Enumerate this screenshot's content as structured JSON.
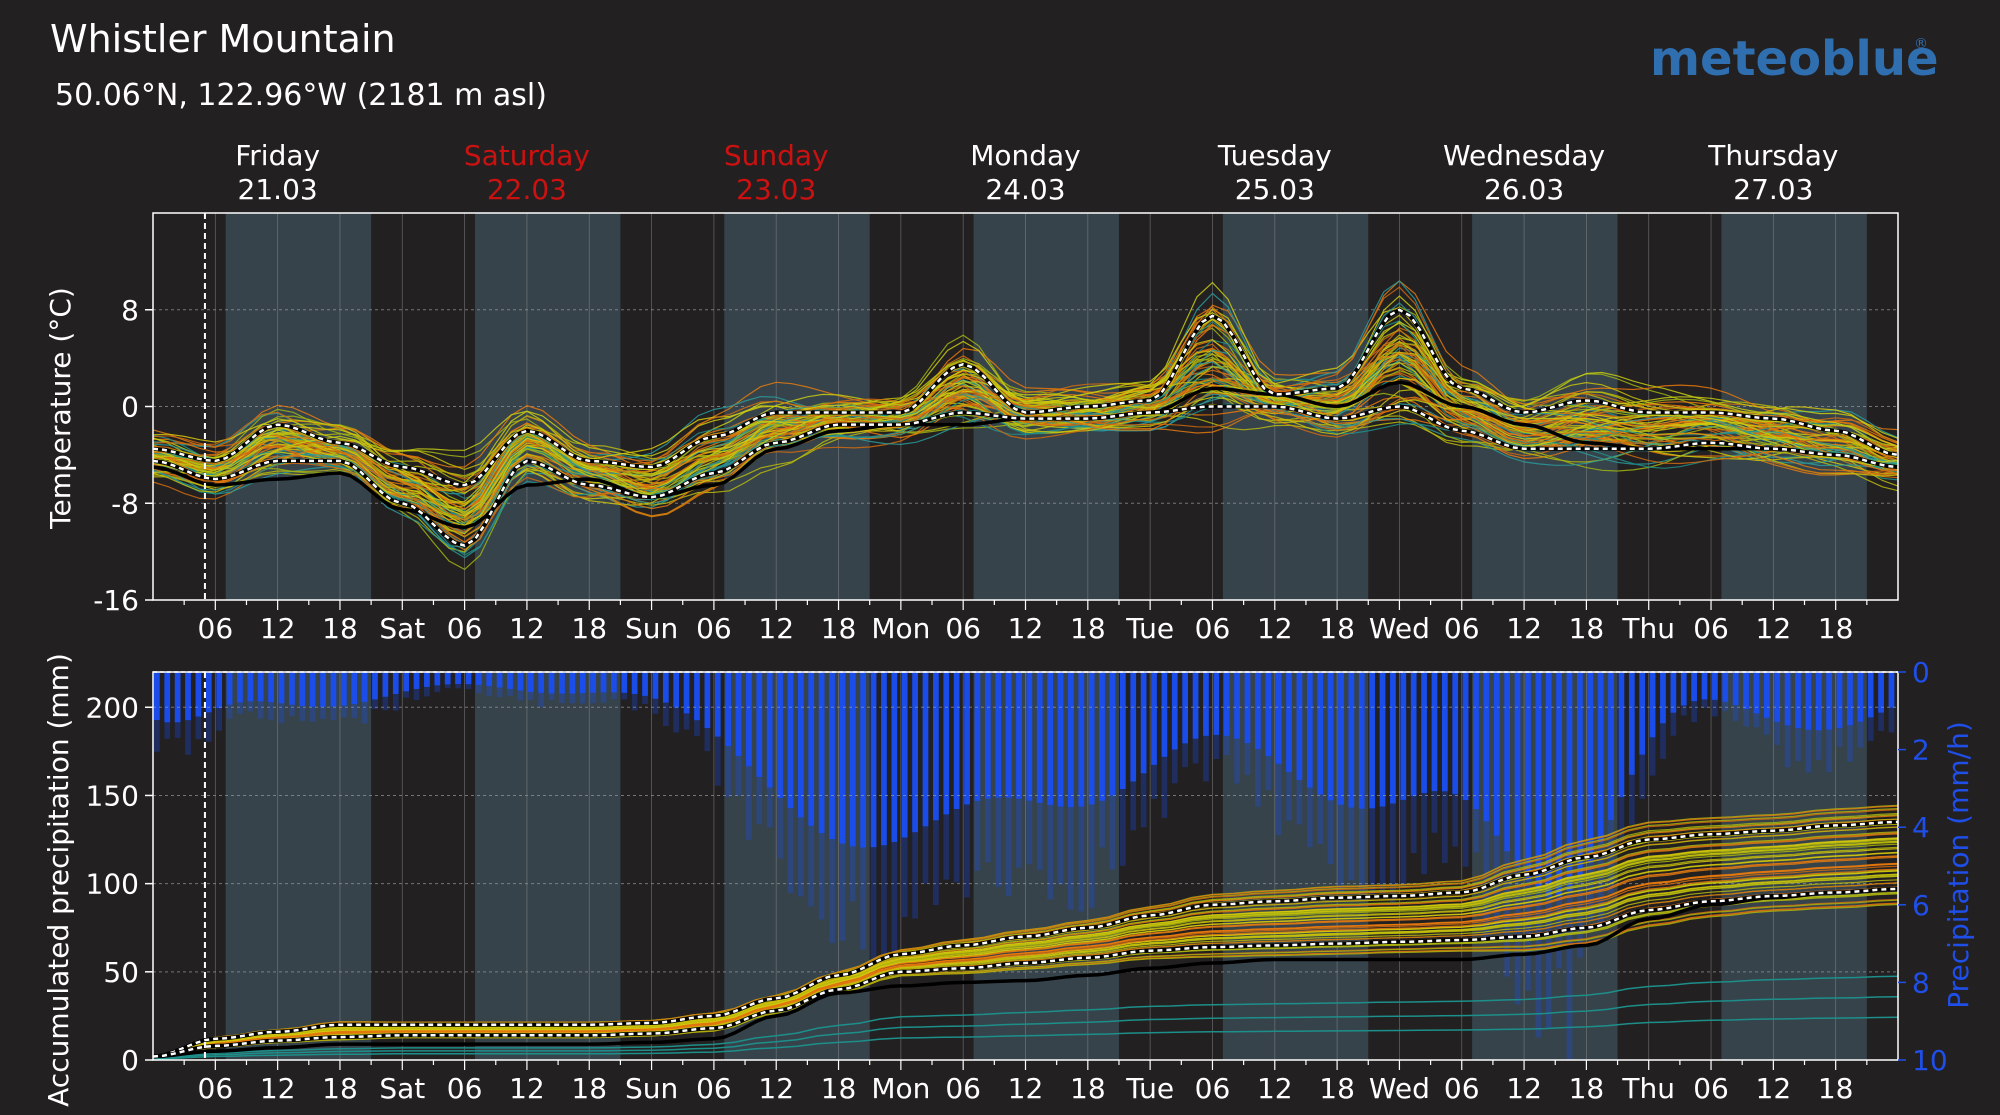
{
  "header": {
    "title": "Whistler Mountain",
    "subtitle": "50.06°N, 122.96°W (2181 m asl)",
    "logo": "meteoblue"
  },
  "colors": {
    "background": "#222021",
    "day_band": "#36434b",
    "plot_frame": "#ffffff",
    "weekend_label": "#cc1111",
    "precip_bar": "#1a4ef0",
    "precip_axis": "#1f4ee8",
    "logo": "#2f6fb0"
  },
  "chart_data": [
    {
      "type": "line",
      "panel": "temperature",
      "ylabel": "Temperature (°C)",
      "ylim": [
        -16,
        16
      ],
      "yticks": [
        -16,
        -8,
        0,
        8
      ],
      "grid": true,
      "x_range_hours": [
        0,
        168
      ],
      "x_ticks": [
        "06",
        "12",
        "18",
        "Sat",
        "06",
        "12",
        "18",
        "Sun",
        "06",
        "12",
        "18",
        "Mon",
        "06",
        "12",
        "18",
        "Tue",
        "06",
        "12",
        "18",
        "Wed",
        "06",
        "12",
        "18",
        "Thu",
        "06",
        "12",
        "18"
      ],
      "days": [
        {
          "name": "Friday",
          "date": "21.03",
          "weekend": false
        },
        {
          "name": "Saturday",
          "date": "22.03",
          "weekend": true
        },
        {
          "name": "Sunday",
          "date": "23.03",
          "weekend": true
        },
        {
          "name": "Monday",
          "date": "24.03",
          "weekend": false
        },
        {
          "name": "Tuesday",
          "date": "25.03",
          "weekend": false
        },
        {
          "name": "Wednesday",
          "date": "26.03",
          "weekend": false
        },
        {
          "name": "Thursday",
          "date": "27.03",
          "weekend": false
        }
      ],
      "now_marker_hour": 5,
      "series": [
        {
          "role": "upper",
          "x": [
            0,
            6,
            12,
            18,
            24,
            30,
            36,
            42,
            48,
            54,
            60,
            66,
            72,
            78,
            84,
            90,
            96,
            102,
            108,
            114,
            120,
            126,
            132,
            138,
            144,
            150,
            156,
            162,
            168
          ],
          "values": [
            -3.5,
            -4.5,
            -1.5,
            -3.0,
            -5.0,
            -6.5,
            -2.0,
            -4.5,
            -5.0,
            -2.5,
            -0.5,
            -0.5,
            -0.5,
            3.5,
            -0.5,
            0.0,
            0.5,
            7.5,
            1.0,
            1.5,
            8.0,
            1.5,
            -0.5,
            0.5,
            -0.5,
            -0.5,
            -1.0,
            -2.0,
            -4.0
          ]
        },
        {
          "role": "lower",
          "x": [
            0,
            6,
            12,
            18,
            24,
            30,
            36,
            42,
            48,
            54,
            60,
            66,
            72,
            78,
            84,
            90,
            96,
            102,
            108,
            114,
            120,
            126,
            132,
            138,
            144,
            150,
            156,
            162,
            168
          ],
          "values": [
            -4.5,
            -6.0,
            -4.5,
            -4.5,
            -8.0,
            -11.5,
            -4.5,
            -6.5,
            -7.5,
            -5.5,
            -3.0,
            -1.5,
            -1.5,
            -0.5,
            -1.0,
            -1.0,
            -0.5,
            0.0,
            0.0,
            -1.0,
            0.0,
            -2.0,
            -3.5,
            -3.5,
            -3.5,
            -3.0,
            -3.5,
            -4.0,
            -5.0
          ]
        },
        {
          "role": "median",
          "x": [
            0,
            6,
            12,
            18,
            24,
            30,
            36,
            42,
            48,
            54,
            60,
            66,
            72,
            78,
            84,
            90,
            96,
            102,
            108,
            114,
            120,
            126,
            132,
            138,
            144,
            150,
            156,
            162,
            168
          ],
          "values": [
            -5.0,
            -6.5,
            -6.0,
            -5.5,
            -8.5,
            -10.0,
            -6.5,
            -6.0,
            -7.5,
            -6.5,
            -3.5,
            -2.0,
            -1.5,
            -1.5,
            -1.0,
            -1.0,
            -0.5,
            1.5,
            1.0,
            0.0,
            2.0,
            0.0,
            -1.5,
            -3.0,
            -3.5,
            -3.5,
            -3.5,
            -4.0,
            -5.0
          ]
        }
      ]
    },
    {
      "type": "line",
      "panel": "precipitation",
      "ylabel": "Accumulated precipitation (mm)",
      "ylim": [
        0,
        220
      ],
      "yticks": [
        0,
        50,
        100,
        150,
        200
      ],
      "y2label": "Precipitation (mm/h)",
      "y2lim": [
        0,
        10
      ],
      "y2ticks": [
        0,
        2,
        4,
        6,
        8,
        10
      ],
      "y2_inverted": true,
      "grid": true,
      "series": [
        {
          "role": "upper",
          "x": [
            0,
            6,
            12,
            18,
            24,
            30,
            36,
            42,
            48,
            54,
            60,
            66,
            72,
            78,
            84,
            90,
            96,
            102,
            108,
            114,
            120,
            126,
            132,
            138,
            144,
            150,
            156,
            162,
            168
          ],
          "values": [
            2,
            12,
            16,
            20,
            20,
            20,
            20,
            20,
            21,
            25,
            35,
            48,
            60,
            65,
            70,
            75,
            82,
            88,
            90,
            92,
            93,
            95,
            105,
            115,
            125,
            128,
            130,
            133,
            135
          ]
        },
        {
          "role": "lower",
          "x": [
            0,
            6,
            12,
            18,
            24,
            30,
            36,
            42,
            48,
            54,
            60,
            66,
            72,
            78,
            84,
            90,
            96,
            102,
            108,
            114,
            120,
            126,
            132,
            138,
            144,
            150,
            156,
            162,
            168
          ],
          "values": [
            2,
            8,
            11,
            13,
            14,
            14,
            14,
            14,
            15,
            18,
            28,
            40,
            50,
            52,
            55,
            58,
            62,
            64,
            65,
            66,
            67,
            68,
            70,
            75,
            85,
            90,
            93,
            95,
            97
          ]
        },
        {
          "role": "median",
          "x": [
            0,
            6,
            12,
            18,
            24,
            30,
            36,
            42,
            48,
            54,
            60,
            66,
            72,
            78,
            84,
            90,
            96,
            102,
            108,
            114,
            120,
            126,
            132,
            138,
            144,
            150,
            156,
            162,
            168
          ],
          "values": [
            2,
            5,
            7,
            9,
            9,
            9,
            9,
            9,
            10,
            12,
            25,
            38,
            42,
            44,
            45,
            48,
            52,
            55,
            57,
            57,
            57,
            57,
            60,
            65,
            80,
            88,
            92,
            95,
            97
          ]
        }
      ]
    }
  ]
}
